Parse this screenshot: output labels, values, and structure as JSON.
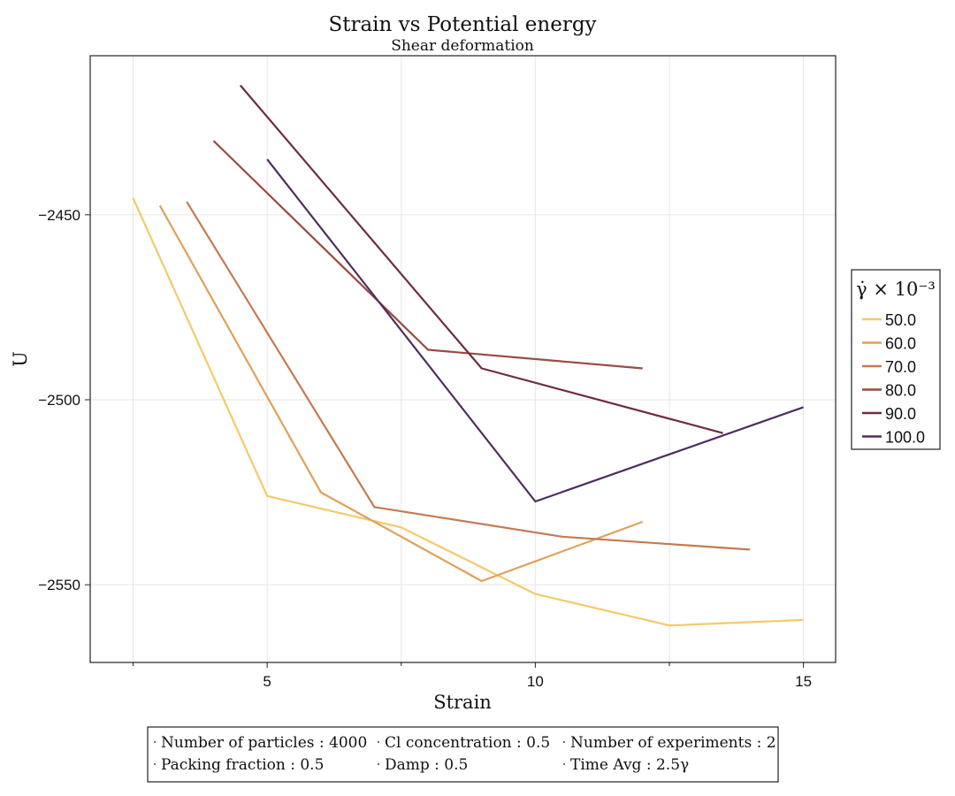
{
  "chart_data": {
    "type": "line",
    "title": "Strain vs Potential energy",
    "subtitle": "Shear deformation",
    "xlabel": "Strain",
    "ylabel": "U",
    "xlim": [
      1.7,
      15.6
    ],
    "ylim": [
      -2571,
      -2407
    ],
    "xticks": [
      5,
      10,
      15
    ],
    "yticks": [
      -2450,
      -2500,
      -2550
    ],
    "xtick_labels": [
      "5",
      "10",
      "15"
    ],
    "ytick_labels": [
      "−2450",
      "−2500",
      "−2550"
    ],
    "minor_xticks": [
      2.5,
      7.5,
      12.5
    ],
    "grid": true,
    "legend_position": "right",
    "legend_title": "γ̇ × 10⁻³",
    "series": [
      {
        "name": "50.0",
        "color": "#f5c96a",
        "x": [
          2.5,
          5.0,
          7.5,
          10.0,
          12.5,
          15.0
        ],
        "y": [
          -2445.5,
          -2526.0,
          -2534.5,
          -2552.5,
          -2561.0,
          -2559.5
        ]
      },
      {
        "name": "60.0",
        "color": "#e0a05a",
        "x": [
          3.0,
          6.0,
          9.0,
          12.0
        ],
        "y": [
          -2447.5,
          -2525.0,
          -2549.0,
          -2533.0
        ]
      },
      {
        "name": "70.0",
        "color": "#c47a50",
        "x": [
          3.5,
          7.0,
          10.5,
          14.0
        ],
        "y": [
          -2446.5,
          -2529.0,
          -2537.0,
          -2540.5
        ]
      },
      {
        "name": "80.0",
        "color": "#9a4a42",
        "x": [
          4.0,
          8.0,
          12.0
        ],
        "y": [
          -2430.0,
          -2486.5,
          -2491.5
        ]
      },
      {
        "name": "90.0",
        "color": "#6e2d40",
        "x": [
          4.5,
          9.0,
          13.5
        ],
        "y": [
          -2415.0,
          -2491.5,
          -2509.0
        ]
      },
      {
        "name": "100.0",
        "color": "#4f2e5e",
        "x": [
          5.0,
          10.0,
          15.0
        ],
        "y": [
          -2435.0,
          -2527.5,
          -2502.0
        ]
      }
    ]
  },
  "info": {
    "row1": [
      "Number of particles : 4000",
      "Cl concentration : 0.5",
      "Number of experiments : 2"
    ],
    "row2": [
      "Packing fraction : 0.5",
      "Damp : 0.5",
      "Time Avg : 2.5γ"
    ]
  }
}
